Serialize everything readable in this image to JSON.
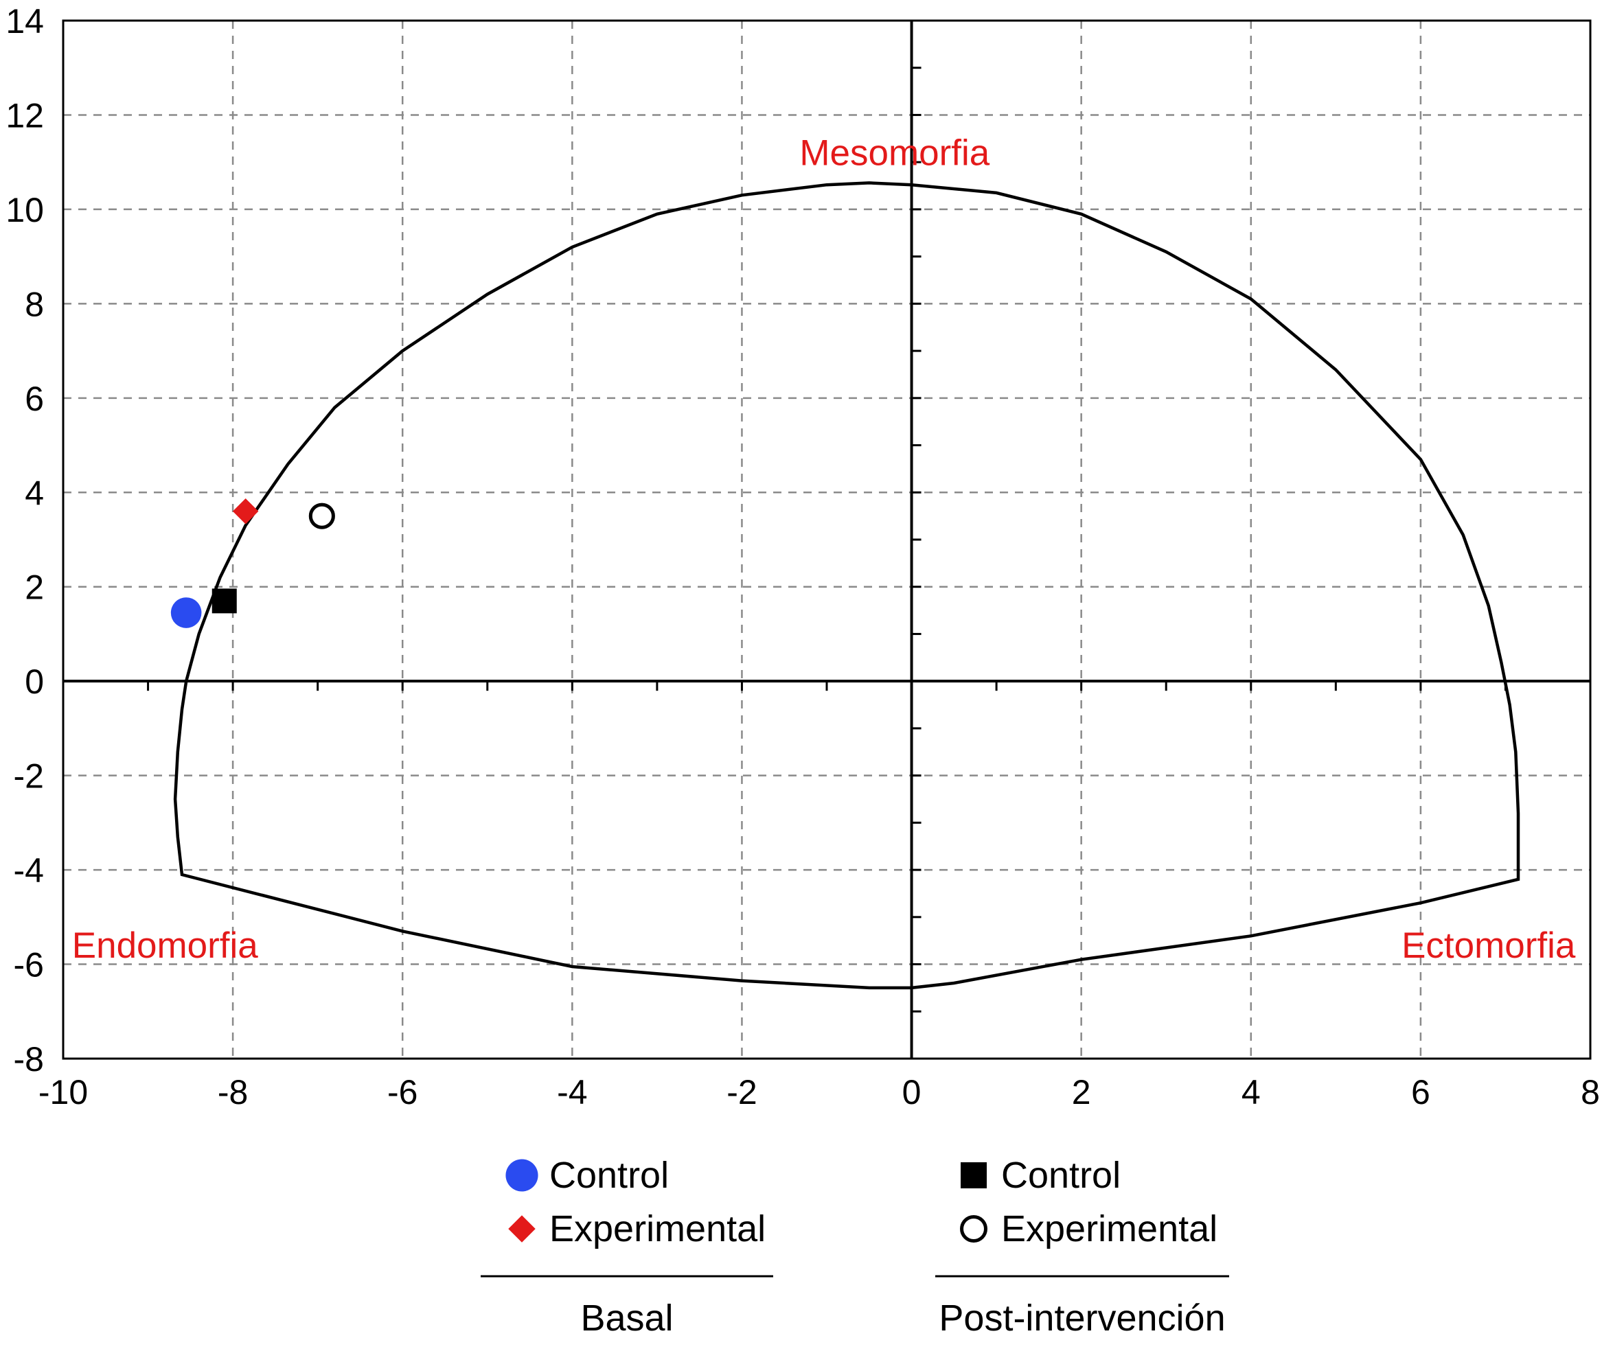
{
  "chart_data": {
    "type": "scatter",
    "title": "",
    "xlabel": "",
    "ylabel": "",
    "xlim": [
      -10,
      8
    ],
    "ylim": [
      -8,
      14
    ],
    "x_ticks": [
      -10,
      -8,
      -6,
      -4,
      -2,
      0,
      2,
      4,
      6,
      8
    ],
    "y_ticks": [
      -8,
      -6,
      -4,
      -2,
      0,
      2,
      4,
      6,
      8,
      10,
      12,
      14
    ],
    "x_tick_labels": [
      "-10",
      "-8",
      "-6",
      "-4",
      "-2",
      "0",
      "2",
      "4",
      "6",
      "8"
    ],
    "y_tick_labels": [
      "-8",
      "-6",
      "-4",
      "-2",
      "0",
      "2",
      "4",
      "6",
      "8",
      "10",
      "12",
      "14"
    ],
    "grid": true,
    "region_labels": [
      {
        "text": "Mesomorfia",
        "x": -0.2,
        "y": 11.2
      },
      {
        "text": "Endomorfia",
        "x": -8.8,
        "y": -5.6
      },
      {
        "text": "Ectomorfia",
        "x": 6.8,
        "y": -5.6
      }
    ],
    "somatochart_outline": [
      [
        -8.55,
        0
      ],
      [
        -8.4,
        1
      ],
      [
        -8.15,
        2.2
      ],
      [
        -7.85,
        3.3
      ],
      [
        -7.35,
        4.6
      ],
      [
        -6.8,
        5.8
      ],
      [
        -6,
        7
      ],
      [
        -5,
        8.2
      ],
      [
        -4,
        9.2
      ],
      [
        -3,
        9.9
      ],
      [
        -2,
        10.3
      ],
      [
        -1,
        10.52
      ],
      [
        -0.5,
        10.56
      ],
      [
        0,
        10.52
      ],
      [
        1,
        10.35
      ],
      [
        2,
        9.9
      ],
      [
        3,
        9.1
      ],
      [
        4,
        8.1
      ],
      [
        5,
        6.6
      ],
      [
        6,
        4.7
      ],
      [
        6.5,
        3.1
      ],
      [
        6.8,
        1.6
      ],
      [
        6.95,
        0.4
      ],
      [
        7.05,
        -0.5
      ],
      [
        7.12,
        -1.5
      ],
      [
        7.15,
        -2.8
      ],
      [
        7.15,
        -4.2
      ],
      [
        6,
        -4.7
      ],
      [
        4,
        -5.4
      ],
      [
        2,
        -5.9
      ],
      [
        0.5,
        -6.4
      ],
      [
        0,
        -6.5
      ],
      [
        -0.5,
        -6.5
      ],
      [
        -2,
        -6.35
      ],
      [
        -4,
        -6.05
      ],
      [
        -6,
        -5.3
      ],
      [
        -8.6,
        -4.1
      ],
      [
        -8.65,
        -3.3
      ],
      [
        -8.68,
        -2.5
      ],
      [
        -8.65,
        -1.5
      ],
      [
        -8.6,
        -0.6
      ]
    ],
    "series": [
      {
        "group": "Basal",
        "name": "Control",
        "marker": "circle-filled",
        "color": "#2a4bf0",
        "points": [
          [
            -8.55,
            1.45
          ]
        ]
      },
      {
        "group": "Basal",
        "name": "Experimental",
        "marker": "diamond-filled",
        "color": "#e31a1a",
        "points": [
          [
            -7.85,
            3.6
          ]
        ]
      },
      {
        "group": "Post-intervención",
        "name": "Control",
        "marker": "square-filled",
        "color": "#000000",
        "points": [
          [
            -8.1,
            1.7
          ]
        ]
      },
      {
        "group": "Post-intervención",
        "name": "Experimental",
        "marker": "circle-open",
        "color": "#000000",
        "points": [
          [
            -6.95,
            3.5
          ]
        ]
      }
    ],
    "legend": {
      "placement": "bottom",
      "groups": [
        {
          "label": "Basal",
          "entries": [
            {
              "name": "Control",
              "marker": "circle-filled",
              "color": "#2a4bf0"
            },
            {
              "name": "Experimental",
              "marker": "diamond-filled",
              "color": "#e31a1a"
            }
          ]
        },
        {
          "label": "Post-intervención",
          "entries": [
            {
              "name": "Control",
              "marker": "square-filled",
              "color": "#000000"
            },
            {
              "name": "Experimental",
              "marker": "circle-open",
              "color": "#000000"
            }
          ]
        }
      ]
    },
    "colors": {
      "grid": "#8a8a8a",
      "axis": "#000000",
      "region_label": "#e31a1a"
    }
  }
}
